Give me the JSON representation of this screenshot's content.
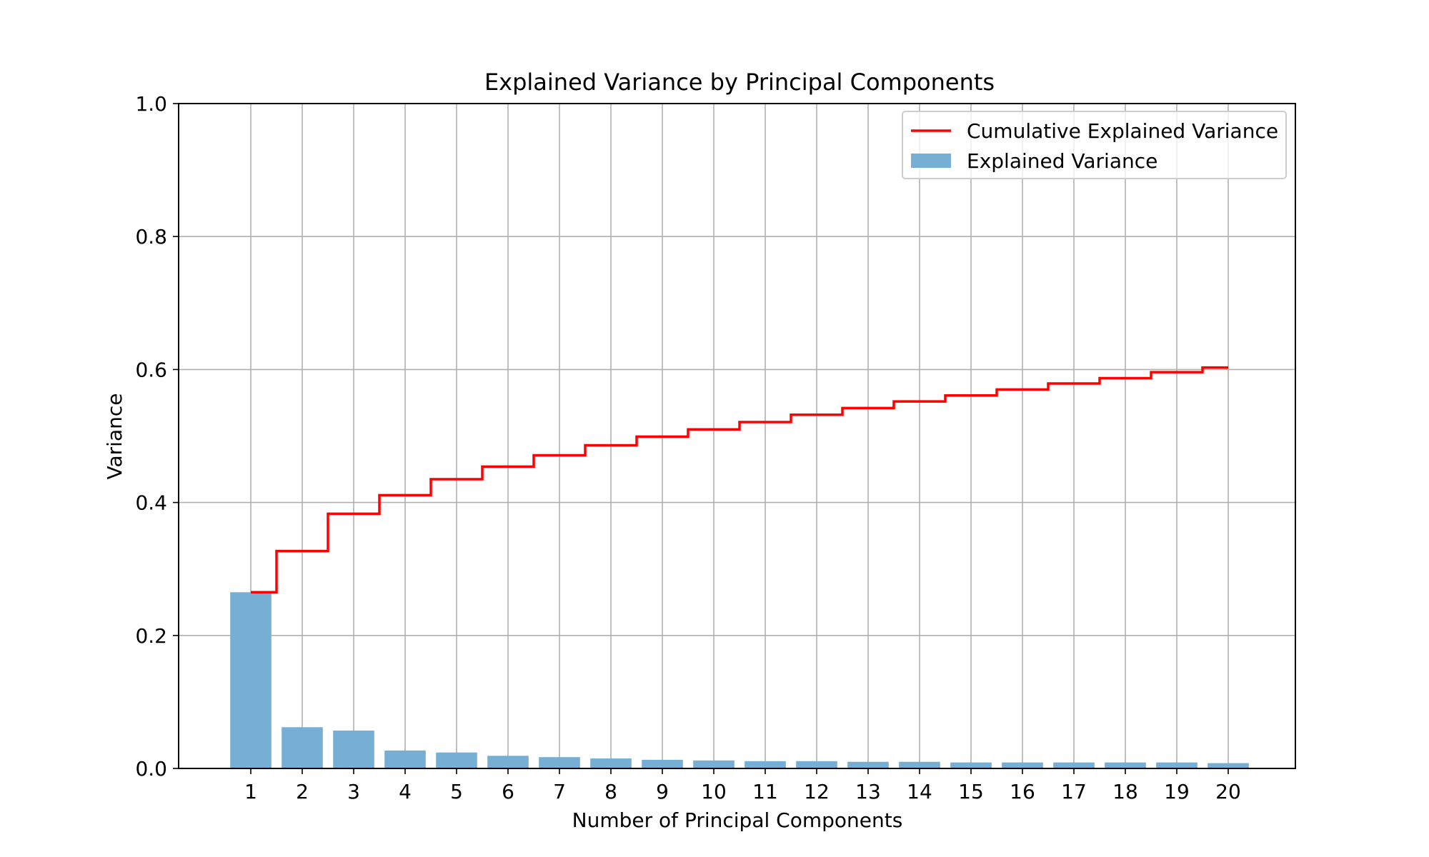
{
  "chart_data": {
    "type": "bar",
    "title": "Explained Variance by Principal Components",
    "xlabel": "Number of Principal Components",
    "ylabel": "Variance",
    "categories": [
      "1",
      "2",
      "3",
      "4",
      "5",
      "6",
      "7",
      "8",
      "9",
      "10",
      "11",
      "12",
      "13",
      "14",
      "15",
      "16",
      "17",
      "18",
      "19",
      "20"
    ],
    "ylim": [
      0,
      1.0
    ],
    "yticks": [
      "0.0",
      "0.2",
      "0.4",
      "0.6",
      "0.8",
      "1.0"
    ],
    "grid": true,
    "legend_position": "top-right",
    "series": [
      {
        "name": "Explained Variance",
        "type": "bar",
        "color": "#76aed4",
        "values": [
          0.265,
          0.062,
          0.057,
          0.027,
          0.024,
          0.019,
          0.017,
          0.015,
          0.013,
          0.012,
          0.011,
          0.011,
          0.01,
          0.01,
          0.009,
          0.009,
          0.009,
          0.009,
          0.009,
          0.008
        ]
      },
      {
        "name": "Cumulative Explained Variance",
        "type": "step",
        "color": "#ff0000",
        "values": [
          0.265,
          0.327,
          0.383,
          0.411,
          0.435,
          0.454,
          0.471,
          0.486,
          0.499,
          0.51,
          0.521,
          0.532,
          0.542,
          0.552,
          0.561,
          0.57,
          0.579,
          0.587,
          0.596,
          0.603
        ]
      }
    ]
  }
}
